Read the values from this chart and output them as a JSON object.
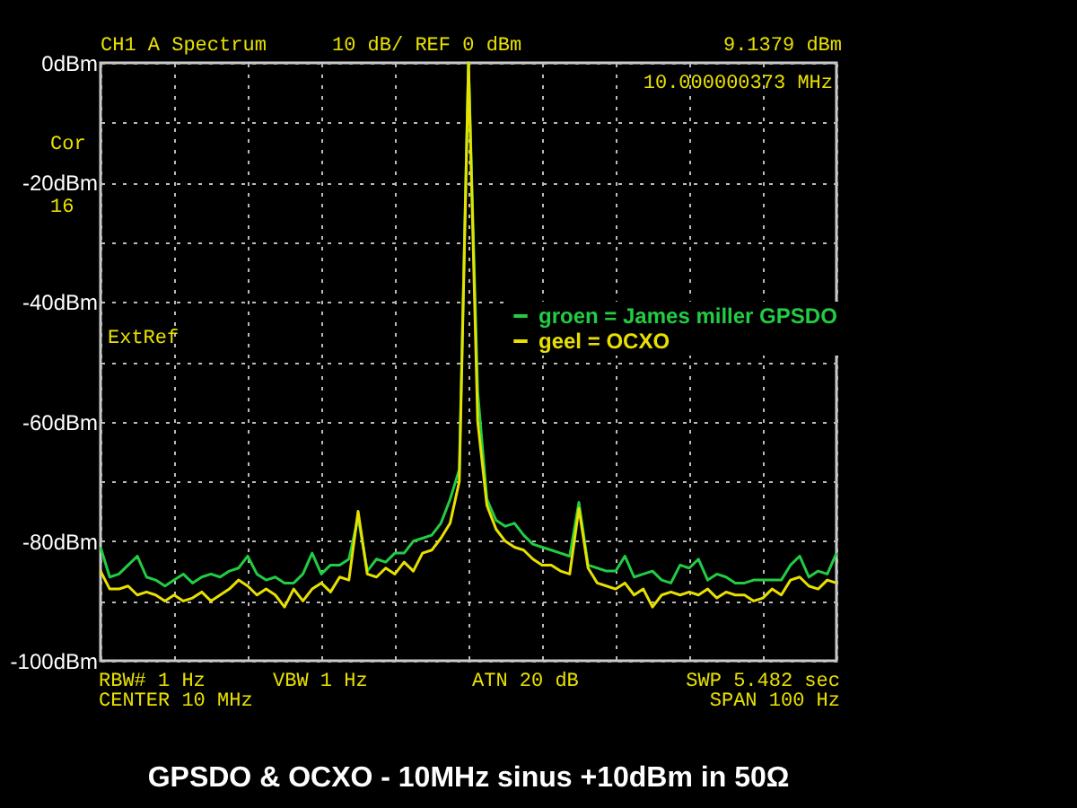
{
  "chart_data": {
    "type": "line",
    "title": "GPSDO & OCXO  -  10MHz sinus  +10dBm in 50Ω",
    "categories": [
      null,
      null,
      null,
      null,
      null,
      null,
      null,
      null,
      null,
      null,
      null,
      null,
      null,
      null,
      null,
      null,
      null,
      null,
      null,
      null,
      null,
      null,
      null,
      null,
      null,
      null,
      null,
      null,
      null,
      null,
      null,
      null,
      null,
      null,
      null,
      null,
      null,
      null,
      null,
      null,
      null,
      null,
      null,
      null,
      null,
      null,
      null,
      null,
      null,
      null,
      null,
      null,
      null,
      null,
      null,
      null,
      null,
      null,
      null,
      null,
      null,
      null,
      null,
      null,
      null,
      null,
      null,
      null,
      null,
      null,
      null,
      null,
      null,
      null,
      null,
      null,
      null,
      null,
      null,
      null,
      null
    ],
    "series": [
      {
        "name": "groen = James miller GPSDO",
        "color": "#22cc44",
        "values": [
          -81,
          -86,
          -85.5,
          -84,
          -82.5,
          -86,
          -86.5,
          -87.5,
          -86.5,
          -85.5,
          -87,
          -86,
          -85.5,
          -86,
          -85,
          -84.5,
          -82.5,
          -85.5,
          -86.5,
          -86,
          -87,
          -87,
          -85.5,
          -82,
          -85.5,
          -84,
          -84,
          -83,
          -76,
          -85,
          -83,
          -83.5,
          -82,
          -82,
          -80,
          -79.5,
          -79,
          -77,
          -73,
          -68,
          0,
          -55,
          -73,
          -76.5,
          -77.5,
          -77,
          -79,
          -80.5,
          -81,
          -81.5,
          -82,
          -82.5,
          -73.5,
          -84,
          -84.5,
          -85,
          -85,
          -82.5,
          -86,
          -85.5,
          -85,
          -86.5,
          -87,
          -84,
          -84.5,
          -83,
          -86.5,
          -85.5,
          -86,
          -87,
          -87,
          -86.5,
          -86.5,
          -86.5,
          -86.5,
          -84,
          -82.5,
          -86,
          -85,
          -85.5,
          -82
        ]
      },
      {
        "name": "geel = OCXO",
        "color": "#e8e000",
        "values": [
          -85,
          -88,
          -88,
          -87.5,
          -89,
          -88.5,
          -89,
          -90,
          -89,
          -90,
          -89.5,
          -88.5,
          -90,
          -89,
          -88,
          -86.5,
          -87.5,
          -89,
          -88,
          -89,
          -91,
          -88,
          -90,
          -88,
          -87,
          -88.5,
          -86,
          -86.5,
          -75,
          -85.5,
          -86,
          -84.5,
          -85.5,
          -83.5,
          -85,
          -82,
          -81.5,
          -79.5,
          -77,
          -70,
          0,
          -60,
          -74,
          -78,
          -80,
          -81,
          -81.5,
          -83,
          -84,
          -84,
          -85,
          -85.5,
          -74.5,
          -84.5,
          -87,
          -87.5,
          -88,
          -87,
          -89,
          -88,
          -91,
          -89,
          -88.5,
          -89,
          -88.5,
          -89,
          -88,
          -89.5,
          -88.5,
          -89,
          -89,
          -90,
          -89.5,
          -88,
          -89,
          -86.5,
          -86,
          -87.5,
          -88,
          -86.5,
          -87
        ]
      }
    ],
    "ylim": [
      -100,
      0
    ],
    "yticks": [
      {
        "value": -100,
        "label": "-100dBm"
      },
      {
        "value": -90,
        "label": null
      },
      {
        "value": -80,
        "label": "-80dBm"
      },
      {
        "value": -70,
        "label": null
      },
      {
        "value": -60,
        "label": "-60dBm"
      },
      {
        "value": -50,
        "label": null
      },
      {
        "value": -40,
        "label": "-40dBm"
      },
      {
        "value": -30,
        "label": null
      },
      {
        "value": -20,
        "label": "-20dBm"
      },
      {
        "value": -10,
        "label": null
      },
      {
        "value": 0,
        "label": "0dBm"
      }
    ],
    "tick_labels": "y",
    "grid": true,
    "legend": "right",
    "marker": "none",
    "line_style": "solid",
    "annotations": [
      "CH1 A  Spectrum",
      "10 dB/ REF 0 dBm",
      "9.1379 dBm",
      "10.000000373 MHz",
      "Cor",
      "16",
      "ExtRef",
      "RBW# 1 Hz",
      "VBW 1 Hz",
      "ATN  20 dB",
      "SWP  5.482 sec",
      "CENTER  10 MHz",
      "SPAN  100 Hz"
    ]
  }
}
